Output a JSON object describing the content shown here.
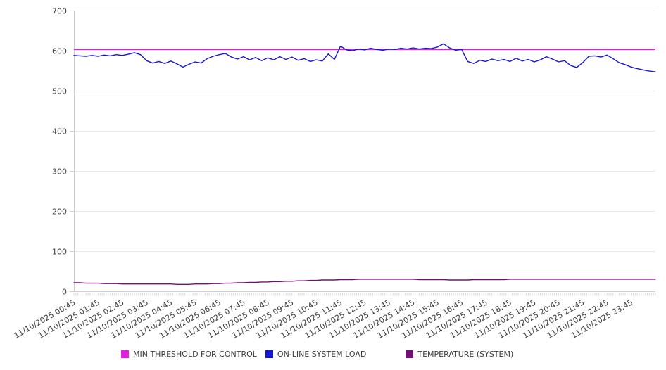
{
  "chart_data": {
    "type": "line",
    "title": "",
    "grid": "horizontal",
    "legend_position": "bottom",
    "y_axis": {
      "min": 0,
      "max": 700,
      "step": 100,
      "tick_labels": [
        "0",
        "100",
        "200",
        "300",
        "400",
        "500",
        "600",
        "700"
      ]
    },
    "x_axis": {
      "tick_labels": [
        "11/10/2025 00:45",
        "11/10/2025 01:45",
        "11/10/2025 02:45",
        "11/10/2025 03:45",
        "11/10/2025 04:45",
        "11/10/2025 05:45",
        "11/10/2025 06:45",
        "11/10/2025 07:45",
        "11/10/2025 08:45",
        "11/10/2025 09:45",
        "11/10/2025 10:45",
        "11/10/2025 11:45",
        "11/10/2025 12:45",
        "11/10/2025 13:45",
        "11/10/2025 14:45",
        "11/10/2025 15:45",
        "11/10/2025 16:45",
        "11/10/2025 17:45",
        "11/10/2025 18:45",
        "11/10/2025 19:45",
        "11/10/2025 20:45",
        "11/10/2025 21:45",
        "11/10/2025 22:45",
        "11/10/2025 23:45"
      ],
      "label_rotation_deg": -30,
      "minor_tick_count": 288
    },
    "series": [
      {
        "id": "min-threshold-for-control",
        "name": "MIN THRESHOLD FOR CONTROL",
        "color": "#e01ee0",
        "style": "threshold",
        "value": 603
      },
      {
        "id": "on-line-system-load",
        "name": "ON-LINE SYSTEM LOAD",
        "color": "#1616cf",
        "style": "line",
        "values": [
          588,
          587,
          586,
          588,
          586,
          589,
          587,
          590,
          588,
          591,
          595,
          590,
          575,
          569,
          573,
          568,
          574,
          567,
          559,
          566,
          572,
          569,
          580,
          586,
          590,
          593,
          584,
          579,
          585,
          577,
          583,
          575,
          582,
          577,
          585,
          578,
          584,
          576,
          580,
          573,
          577,
          574,
          592,
          578,
          611,
          602,
          600,
          604,
          602,
          606,
          603,
          601,
          604,
          603,
          606,
          604,
          607,
          604,
          606,
          605,
          609,
          617,
          607,
          601,
          603,
          573,
          568,
          576,
          573,
          579,
          575,
          578,
          573,
          581,
          574,
          578,
          572,
          577,
          585,
          579,
          572,
          575,
          563,
          558,
          570,
          586,
          587,
          584,
          589,
          580,
          570,
          565,
          559,
          555,
          552,
          549,
          547
        ]
      },
      {
        "id": "temperature-system",
        "name": "TEMPERATURE (SYSTEM)",
        "color": "#731073",
        "style": "line",
        "values": [
          21,
          21,
          20,
          20,
          20,
          19,
          19,
          19,
          18,
          18,
          18,
          18,
          18,
          18,
          18,
          18,
          18,
          17,
          17,
          17,
          18,
          18,
          18,
          19,
          19,
          20,
          20,
          21,
          21,
          22,
          22,
          23,
          23,
          24,
          24,
          25,
          25,
          26,
          26,
          27,
          27,
          28,
          28,
          28,
          29,
          29,
          29,
          30,
          30,
          30,
          30,
          30,
          30,
          30,
          30,
          30,
          30,
          29,
          29,
          29,
          29,
          29,
          28,
          28,
          28,
          28,
          29,
          29,
          29,
          29,
          29,
          29,
          30,
          30,
          30,
          30,
          30,
          30,
          30,
          30,
          30,
          30,
          30,
          30,
          30,
          30,
          30,
          30,
          30,
          30,
          30,
          30,
          30,
          30,
          30,
          30,
          30
        ]
      }
    ],
    "colors": {
      "gridline": "#e9e9e9",
      "axis": "#cccccc",
      "minor_tick": "#d9d9d9",
      "tick_label": "#3c3c3c"
    }
  }
}
